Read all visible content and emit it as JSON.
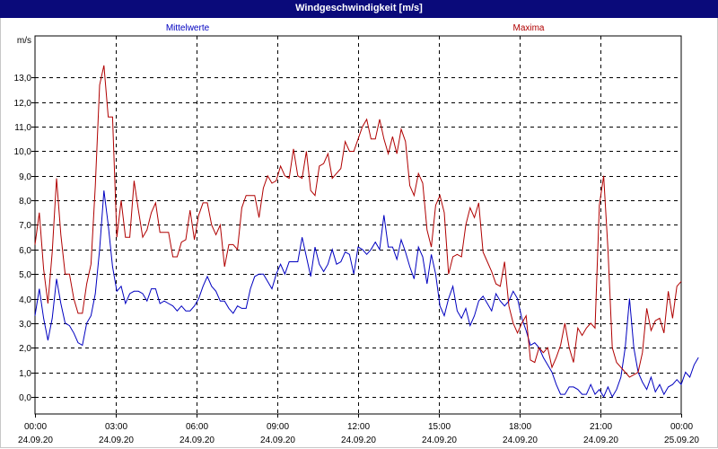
{
  "title": "Windgeschwindigkeit [m/s]",
  "chart_data": {
    "type": "line",
    "title": "Windgeschwindigkeit [m/s]",
    "ylabel": "m/s",
    "ylim": [
      -0.7,
      14.7
    ],
    "xlim": [
      0,
      24
    ],
    "yticks": [
      0.0,
      1.0,
      2.0,
      3.0,
      4.0,
      5.0,
      6.0,
      7.0,
      8.0,
      9.0,
      10.0,
      11.0,
      12.0,
      13.0
    ],
    "ytick_labels": [
      "0,0",
      "1,0",
      "2,0",
      "3,0",
      "4,0",
      "5,0",
      "6,0",
      "7,0",
      "8,0",
      "9,0",
      "10,0",
      "11,0",
      "12,0",
      "13,0"
    ],
    "xticks": [
      {
        "time": "00:00",
        "date": "24.09.20"
      },
      {
        "time": "03:00",
        "date": "24.09.20"
      },
      {
        "time": "06:00",
        "date": "24.09.20"
      },
      {
        "time": "09:00",
        "date": "24.09.20"
      },
      {
        "time": "12:00",
        "date": "24.09.20"
      },
      {
        "time": "15:00",
        "date": "24.09.20"
      },
      {
        "time": "18:00",
        "date": "24.09.20"
      },
      {
        "time": "21:00",
        "date": "24.09.20"
      },
      {
        "time": "00:00",
        "date": "25.09.20"
      }
    ],
    "grid": true,
    "series": [
      {
        "name": "Mittelwerte",
        "color": "#0000c0",
        "values": [
          3.3,
          4.4,
          3.2,
          2.3,
          3.2,
          4.8,
          3.8,
          3.0,
          2.9,
          2.6,
          2.2,
          2.1,
          3.0,
          3.3,
          4.2,
          6.0,
          8.4,
          7.0,
          5.3,
          4.3,
          4.5,
          3.8,
          4.2,
          4.3,
          4.3,
          4.2,
          3.9,
          4.4,
          4.4,
          3.8,
          3.9,
          3.8,
          3.7,
          3.5,
          3.7,
          3.5,
          3.5,
          3.7,
          4.0,
          4.5,
          4.9,
          4.5,
          4.3,
          3.9,
          3.9,
          3.6,
          3.4,
          3.7,
          3.6,
          3.6,
          4.4,
          4.9,
          5.0,
          5.0,
          4.7,
          4.4,
          5.0,
          5.4,
          5.0,
          5.5,
          5.5,
          5.5,
          6.5,
          5.7,
          4.9,
          6.1,
          5.4,
          5.1,
          5.4,
          6.0,
          5.4,
          5.5,
          5.9,
          5.8,
          5.0,
          6.1,
          6.0,
          5.8,
          6.0,
          6.3,
          6.0,
          7.4,
          6.1,
          6.1,
          5.6,
          6.4,
          5.9,
          5.3,
          4.8,
          6.1,
          5.7,
          4.6,
          5.8,
          5.0,
          3.7,
          3.3,
          4.0,
          4.5,
          3.5,
          3.2,
          3.6,
          2.9,
          3.3,
          3.9,
          4.1,
          3.8,
          3.5,
          4.2,
          3.9,
          3.7,
          3.9,
          4.3,
          4.0,
          3.2,
          2.7,
          2.1,
          2.2,
          2.0,
          1.6,
          1.3,
          1.0,
          0.5,
          0.1,
          0.1,
          0.4,
          0.4,
          0.3,
          0.1,
          0.1,
          0.5,
          0.1,
          0.3,
          0.0,
          0.4,
          0.0,
          0.3,
          0.8,
          2.0,
          4.0,
          2.0,
          1.0,
          0.6,
          0.3,
          0.8,
          0.2,
          0.5,
          0.1,
          0.4,
          0.5,
          0.7,
          0.5,
          1.0,
          0.8,
          1.3,
          1.6
        ],
        "x_step_hours": 0.16
      },
      {
        "name": "Maxima",
        "color": "#b00000",
        "values": [
          6.2,
          7.5,
          5.2,
          3.8,
          5.9,
          8.9,
          6.6,
          5.0,
          5.0,
          4.0,
          3.4,
          3.4,
          4.6,
          5.4,
          8.6,
          12.7,
          13.5,
          11.4,
          11.4,
          6.5,
          8.0,
          6.5,
          6.5,
          8.8,
          7.6,
          6.5,
          6.8,
          7.5,
          7.9,
          6.7,
          6.7,
          6.7,
          5.7,
          5.7,
          6.3,
          6.4,
          7.6,
          6.4,
          7.4,
          7.9,
          7.9,
          7.0,
          6.6,
          7.0,
          5.3,
          6.2,
          6.2,
          6.0,
          7.7,
          8.2,
          8.2,
          8.2,
          7.3,
          8.5,
          9.0,
          8.7,
          8.8,
          9.4,
          9.0,
          8.9,
          10.1,
          9.0,
          8.9,
          10.0,
          8.4,
          8.2,
          9.4,
          9.5,
          9.9,
          8.9,
          9.1,
          9.3,
          10.4,
          10.0,
          10.0,
          10.5,
          11.0,
          11.3,
          10.5,
          10.5,
          11.3,
          10.5,
          9.9,
          10.6,
          9.9,
          10.9,
          10.4,
          8.6,
          8.2,
          9.1,
          8.7,
          6.8,
          6.1,
          7.8,
          8.2,
          7.5,
          5.0,
          5.7,
          5.8,
          5.7,
          7.0,
          7.7,
          7.3,
          7.9,
          5.9,
          5.5,
          5.1,
          4.6,
          4.5,
          5.5,
          3.7,
          3.0,
          2.6,
          3.0,
          3.3,
          1.5,
          1.4,
          2.0,
          1.8,
          2.0,
          1.2,
          1.6,
          2.1,
          3.0,
          2.0,
          1.4,
          2.8,
          2.5,
          2.8,
          3.0,
          2.8,
          7.8,
          9.0,
          6.0,
          2.0,
          1.4,
          1.2,
          1.0,
          0.8,
          0.9,
          1.0,
          1.8,
          3.6,
          2.7,
          3.1,
          3.2,
          2.6,
          4.3,
          3.2,
          4.5,
          4.7
        ],
        "x_step_hours": 0.16
      }
    ]
  }
}
